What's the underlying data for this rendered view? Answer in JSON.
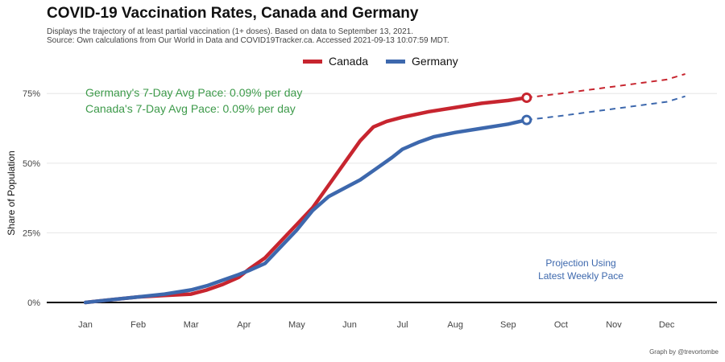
{
  "title": "COVID-19 Vaccination Rates, Canada and Germany",
  "subtitle_lines": [
    "Displays the trajectory of at least partial vaccination (1+ doses). Based on data to September 13, 2021.",
    "Source: Own calculations from Our World in Data and COVID19Tracker.ca. Accessed 2021-09-13 10:07:59 MDT."
  ],
  "caption": "Graph by @trevortombe",
  "colors": {
    "canada": "#c7252f",
    "germany": "#3d68ad",
    "annotation": "#3d9a4a",
    "projection_text": "#3d68ad",
    "grid": "#e6e6e6",
    "baseline": "#000000"
  },
  "annotations": [
    "Germany's 7-Day Avg Pace: 0.09% per day",
    "Canada's 7-Day Avg Pace: 0.09% per day"
  ],
  "projection_label": [
    "Projection Using",
    "Latest Weekly Pace"
  ],
  "chart_data": {
    "type": "line",
    "title": "COVID-19 Vaccination Rates, Canada and Germany",
    "xlabel": "",
    "ylabel": "Share of Population",
    "x_tick_labels": [
      "Jan",
      "Feb",
      "Mar",
      "Apr",
      "May",
      "Jun",
      "Jul",
      "Aug",
      "Sep",
      "Oct",
      "Nov",
      "Dec"
    ],
    "y_tick_labels": [
      "0%",
      "25%",
      "50%",
      "75%"
    ],
    "y_ticks": [
      0,
      25,
      50,
      75
    ],
    "xlim_month": [
      0.5,
      12.6
    ],
    "ylim": [
      0,
      82
    ],
    "grid": true,
    "legend_position": "top",
    "series": [
      {
        "name": "Canada",
        "color_key": "canada",
        "points": [
          [
            1.0,
            0.0
          ],
          [
            1.5,
            1.0
          ],
          [
            2.0,
            2.0
          ],
          [
            2.5,
            2.5
          ],
          [
            3.0,
            3.0
          ],
          [
            3.3,
            4.5
          ],
          [
            3.6,
            6.5
          ],
          [
            3.9,
            9.0
          ],
          [
            4.1,
            12.0
          ],
          [
            4.4,
            16.0
          ],
          [
            4.7,
            22.0
          ],
          [
            5.0,
            28.0
          ],
          [
            5.3,
            34.0
          ],
          [
            5.6,
            42.0
          ],
          [
            5.9,
            50.0
          ],
          [
            6.2,
            58.0
          ],
          [
            6.45,
            63.0
          ],
          [
            6.7,
            65.0
          ],
          [
            7.0,
            66.5
          ],
          [
            7.5,
            68.5
          ],
          [
            8.0,
            70.0
          ],
          [
            8.5,
            71.5
          ],
          [
            9.0,
            72.5
          ],
          [
            9.35,
            73.5
          ]
        ],
        "projection": [
          [
            9.35,
            73.5
          ],
          [
            10.0,
            75.0
          ],
          [
            11.0,
            77.5
          ],
          [
            12.0,
            80.0
          ],
          [
            12.35,
            82.0
          ]
        ]
      },
      {
        "name": "Germany",
        "color_key": "germany",
        "points": [
          [
            1.0,
            0.0
          ],
          [
            1.5,
            1.0
          ],
          [
            2.0,
            2.0
          ],
          [
            2.5,
            3.0
          ],
          [
            3.0,
            4.5
          ],
          [
            3.3,
            6.0
          ],
          [
            3.6,
            8.0
          ],
          [
            3.9,
            10.0
          ],
          [
            4.1,
            11.5
          ],
          [
            4.4,
            14.0
          ],
          [
            4.7,
            20.0
          ],
          [
            5.0,
            26.0
          ],
          [
            5.3,
            33.0
          ],
          [
            5.6,
            38.0
          ],
          [
            5.9,
            41.0
          ],
          [
            6.2,
            44.0
          ],
          [
            6.5,
            48.0
          ],
          [
            6.8,
            52.0
          ],
          [
            7.0,
            55.0
          ],
          [
            7.3,
            57.5
          ],
          [
            7.6,
            59.5
          ],
          [
            8.0,
            61.0
          ],
          [
            8.5,
            62.5
          ],
          [
            9.0,
            64.0
          ],
          [
            9.35,
            65.5
          ]
        ],
        "projection": [
          [
            9.35,
            65.5
          ],
          [
            10.0,
            67.0
          ],
          [
            11.0,
            69.5
          ],
          [
            12.0,
            72.0
          ],
          [
            12.35,
            74.0
          ]
        ]
      }
    ]
  }
}
